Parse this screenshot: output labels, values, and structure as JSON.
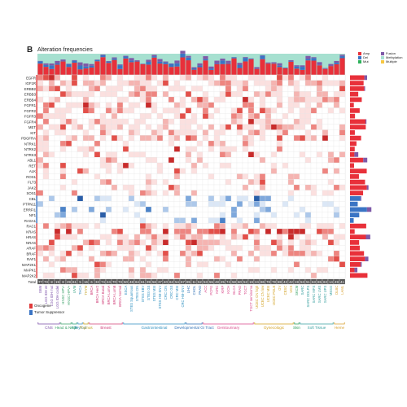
{
  "panel_letter": "B",
  "colors": {
    "amp": "#e8303a",
    "del": "#3a74c4",
    "mut": "#2db15a",
    "fusion": "#7e5aa8",
    "methylation": "#a6e0d0",
    "multiple": "#f7c843",
    "oncogene": "#e03a3a",
    "tumor_suppressor": "#3a74c4",
    "total_row": "#555555"
  },
  "chart_data": {
    "type": "heatmap",
    "title": "Alteration frequencies",
    "legend": {
      "placement": "top-right",
      "entries": [
        "Amp",
        "Del",
        "Mut",
        "Fusion",
        "Methylation",
        "Multiple"
      ]
    },
    "gene_type_legend": [
      "Oncogene",
      "Tumor Suppressor"
    ],
    "genes": [
      "EGFR",
      "IGF1R",
      "ERBB2",
      "ERBB3",
      "ERBB4",
      "FGFR1",
      "FGFR2",
      "FGFR3",
      "FGFR4",
      "MET",
      "KIT",
      "PDGFRA",
      "NTRK1",
      "NTRK2",
      "NTRK3",
      "ABL1",
      "RET",
      "ALK",
      "ROS1",
      "FLT3",
      "JAK2",
      "SOS1",
      "CBL",
      "PTPN11",
      "ERRFI1",
      "NF1",
      "RASA1",
      "RAC1",
      "KRAS",
      "HRAS",
      "NRAS",
      "ARAF",
      "BRAF",
      "RAF1",
      "MAP2K1",
      "MAPK1",
      "MAP2K2"
    ],
    "gene_types": [
      "onc",
      "onc",
      "onc",
      "onc",
      "onc",
      "onc",
      "onc",
      "onc",
      "onc",
      "onc",
      "onc",
      "onc",
      "onc",
      "onc",
      "onc",
      "onc",
      "onc",
      "onc",
      "onc",
      "onc",
      "onc",
      "onc",
      "ts",
      "ts",
      "ts",
      "ts",
      "ts",
      "onc",
      "onc",
      "onc",
      "onc",
      "onc",
      "onc",
      "onc",
      "onc",
      "onc",
      "onc"
    ],
    "columns": [
      "GBM",
      "LGG IDH wt",
      "LGG IDH mut",
      "LGG IDH codel",
      "HNSC HPV-",
      "HNSC HPV+",
      "UVM",
      "THCA",
      "THYM",
      "BRCA",
      "BRCA Her2",
      "BRCA Basal",
      "BRCA LumA",
      "BRCA LumB",
      "BRCA Normal",
      "ESCA",
      "STES Squamous",
      "STES CIN",
      "STES EBV",
      "STES GS",
      "STES MSI",
      "STES HM-SNV",
      "CRC CIN",
      "CRC GS",
      "CRC MSI",
      "CRC HM-SNV",
      "LIHC",
      "CHOL",
      "PAAD",
      "ACC",
      "PCPG",
      "KIRC",
      "KIRP",
      "KICH",
      "BLCA",
      "PRAD",
      "TGCT",
      "TGCT seminoma",
      "UCEC CN high",
      "UCEC CN low",
      "UCEC MSI",
      "UCEC POLE",
      "OV",
      "CESC",
      "UCS",
      "SKCM",
      "SARC",
      "SARC DDLPS",
      "SARC MFS",
      "SARC LMS",
      "SARC UPS",
      "MESO",
      "DLBC",
      "LAML"
    ],
    "groups": [
      {
        "label": "CNS",
        "span": [
          0,
          3
        ]
      },
      {
        "label": "Head & Neck",
        "span": [
          4,
          5
        ]
      },
      {
        "label": "Eye",
        "span": [
          6,
          6
        ]
      },
      {
        "label": "Thyroid",
        "span": [
          7,
          7
        ]
      },
      {
        "label": "Thymus",
        "span": [
          8,
          8
        ]
      },
      {
        "label": "Breast",
        "span": [
          9,
          14
        ]
      },
      {
        "label": "Gastrointestinal",
        "span": [
          15,
          25
        ]
      },
      {
        "label": "Developmental GI Tract",
        "span": [
          26,
          28
        ]
      },
      {
        "label": "Genitourinary",
        "span": [
          29,
          37
        ]
      },
      {
        "label": "Gynecologic",
        "span": [
          38,
          44
        ]
      },
      {
        "label": "Skin",
        "span": [
          45,
          45
        ]
      },
      {
        "label": "Soft Tissue",
        "span": [
          46,
          51
        ]
      },
      {
        "label": "Heme",
        "span": [
          52,
          53
        ]
      }
    ],
    "totals": [
      77,
      73,
      8,
      19,
      8,
      29,
      61,
      5,
      16,
      6,
      32,
      74,
      24,
      70,
      73,
      50,
      48,
      64,
      61,
      39,
      56,
      37,
      40,
      62,
      54,
      67,
      85,
      11,
      52,
      53,
      55,
      48,
      25,
      74,
      58,
      60,
      52,
      19,
      24,
      86,
      78,
      78,
      88,
      42,
      42,
      19,
      53,
      51,
      63,
      65,
      63,
      14,
      49,
      41
    ],
    "row_label": "Total"
  }
}
